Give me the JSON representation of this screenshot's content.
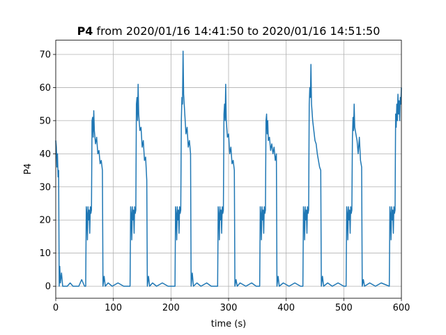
{
  "chart_data": {
    "type": "line",
    "title": {
      "name": "P4",
      "text": "from 2020/01/16 14:41:50 to 2020/01/16 14:51:50"
    },
    "xlabel": "time (s)",
    "ylabel": "P4",
    "xlim": [
      0,
      600
    ],
    "ylim": [
      -3.6,
      74.3
    ],
    "xticks": [
      0,
      100,
      200,
      300,
      400,
      500,
      600
    ],
    "yticks": [
      0,
      10,
      20,
      30,
      40,
      50,
      60,
      70
    ],
    "grid": true,
    "x": [
      0,
      1,
      2,
      3,
      4,
      5,
      6,
      7,
      8,
      10,
      12,
      20,
      25,
      30,
      40,
      45,
      50,
      52,
      53,
      54,
      55,
      56,
      57,
      58,
      59,
      60,
      61,
      62,
      63,
      64,
      65,
      66,
      67,
      69,
      71,
      73,
      75,
      77,
      79,
      81,
      82,
      84,
      86,
      91,
      98,
      108,
      118,
      129,
      130,
      131,
      132,
      133,
      134,
      135,
      136,
      137,
      138,
      139,
      140,
      141,
      142,
      143,
      144,
      146,
      148,
      150,
      152,
      154,
      156,
      158,
      159,
      161,
      163,
      168,
      175,
      185,
      195,
      207,
      208,
      209,
      210,
      211,
      212,
      213,
      214,
      215,
      216,
      217,
      218,
      219,
      220,
      221,
      222,
      224,
      226,
      228,
      230,
      232,
      234,
      235,
      237,
      239,
      245,
      252,
      262,
      270,
      281,
      282,
      283,
      284,
      285,
      286,
      287,
      288,
      289,
      290,
      291,
      292,
      293,
      294,
      295,
      296,
      298,
      300,
      302,
      304,
      306,
      308,
      310,
      311,
      313,
      315,
      320,
      330,
      340,
      348,
      354,
      355,
      356,
      357,
      358,
      359,
      360,
      361,
      362,
      363,
      364,
      365,
      366,
      367,
      368,
      369,
      371,
      373,
      375,
      377,
      379,
      381,
      383,
      384,
      386,
      388,
      395,
      405,
      415,
      425,
      429,
      430,
      431,
      432,
      433,
      434,
      435,
      436,
      437,
      438,
      439,
      440,
      441,
      442,
      443,
      444,
      446,
      448,
      450,
      452,
      454,
      456,
      458,
      460,
      461,
      463,
      465,
      472,
      480,
      490,
      500,
      504,
      505,
      506,
      507,
      508,
      509,
      510,
      511,
      512,
      513,
      514,
      515,
      516,
      517,
      518,
      519,
      521,
      523,
      525,
      527,
      529,
      531,
      532,
      534,
      536,
      545,
      555,
      565,
      579,
      580,
      581,
      582,
      583,
      584,
      585,
      586,
      587,
      588,
      589,
      590,
      591,
      592,
      593,
      594,
      595,
      596,
      597,
      598,
      599,
      600
    ],
    "series": [
      {
        "name": "P4",
        "color": "#1f77b4",
        "values": [
          44,
          42,
          36,
          40,
          33,
          35,
          0,
          6,
          1,
          4,
          0,
          0,
          1,
          0,
          0,
          2,
          0,
          0,
          24,
          22,
          14,
          24,
          20,
          23,
          16,
          24,
          22,
          23,
          50,
          51,
          45,
          53,
          47,
          43,
          45,
          40,
          41,
          37,
          38,
          35,
          0,
          3,
          0,
          1,
          0,
          1,
          0,
          0,
          24,
          22,
          14,
          24,
          20,
          23,
          16,
          24,
          22,
          23,
          55,
          57,
          50,
          61,
          52,
          47,
          48,
          42,
          44,
          38,
          39,
          32,
          0,
          3,
          0,
          1,
          0,
          1,
          0,
          0,
          24,
          22,
          14,
          24,
          20,
          23,
          16,
          24,
          22,
          23,
          50,
          57,
          55,
          71,
          58,
          52,
          46,
          48,
          42,
          44,
          40,
          0,
          4,
          0,
          1,
          0,
          1,
          0,
          0,
          24,
          22,
          14,
          24,
          20,
          23,
          16,
          24,
          22,
          23,
          52,
          55,
          50,
          61,
          50,
          45,
          46,
          40,
          42,
          37,
          38,
          35,
          0,
          2,
          0,
          1,
          0,
          1,
          0,
          0,
          24,
          22,
          14,
          24,
          20,
          23,
          16,
          24,
          22,
          23,
          50,
          52,
          46,
          50,
          44,
          45,
          41,
          43,
          40,
          42,
          38,
          40,
          0,
          3,
          0,
          1,
          0,
          1,
          0,
          0,
          24,
          22,
          14,
          24,
          20,
          23,
          16,
          24,
          22,
          23,
          55,
          60,
          57,
          67,
          55,
          50,
          47,
          44,
          43,
          40,
          38,
          36,
          35,
          0,
          3,
          0,
          1,
          0,
          1,
          0,
          0,
          24,
          22,
          14,
          24,
          20,
          23,
          16,
          24,
          22,
          23,
          45,
          51,
          47,
          55,
          48,
          46,
          44,
          40,
          45,
          38,
          36,
          0,
          2,
          0,
          1,
          0,
          1,
          0,
          24,
          22,
          14,
          24,
          20,
          23,
          16,
          24,
          22,
          23,
          52,
          48,
          55,
          50,
          58,
          52,
          56,
          50,
          57,
          55,
          60
        ]
      }
    ]
  }
}
